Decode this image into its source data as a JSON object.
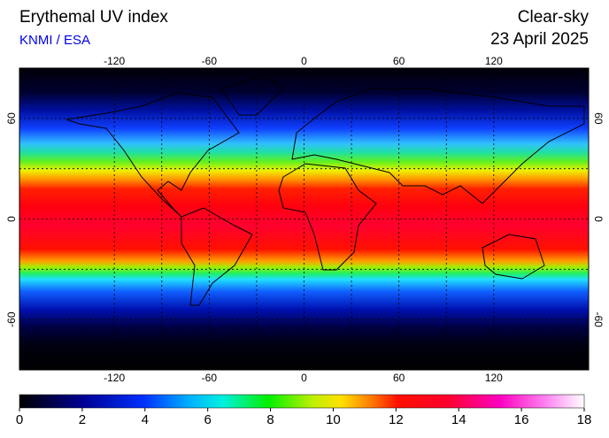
{
  "header": {
    "title": "Erythemal UV index",
    "source": "KNMI / ESA",
    "condition": "Clear-sky",
    "date": "23 April 2025"
  },
  "map": {
    "lon_range": [
      -180,
      180
    ],
    "lat_range": [
      90,
      -90
    ],
    "lon_ticks": [
      -120,
      -60,
      0,
      60,
      120
    ],
    "lat_ticks": [
      60,
      0,
      -60
    ]
  },
  "colorbar": {
    "range": [
      0,
      18
    ],
    "ticks": [
      0,
      2,
      4,
      6,
      8,
      10,
      12,
      14,
      16,
      18
    ]
  }
}
